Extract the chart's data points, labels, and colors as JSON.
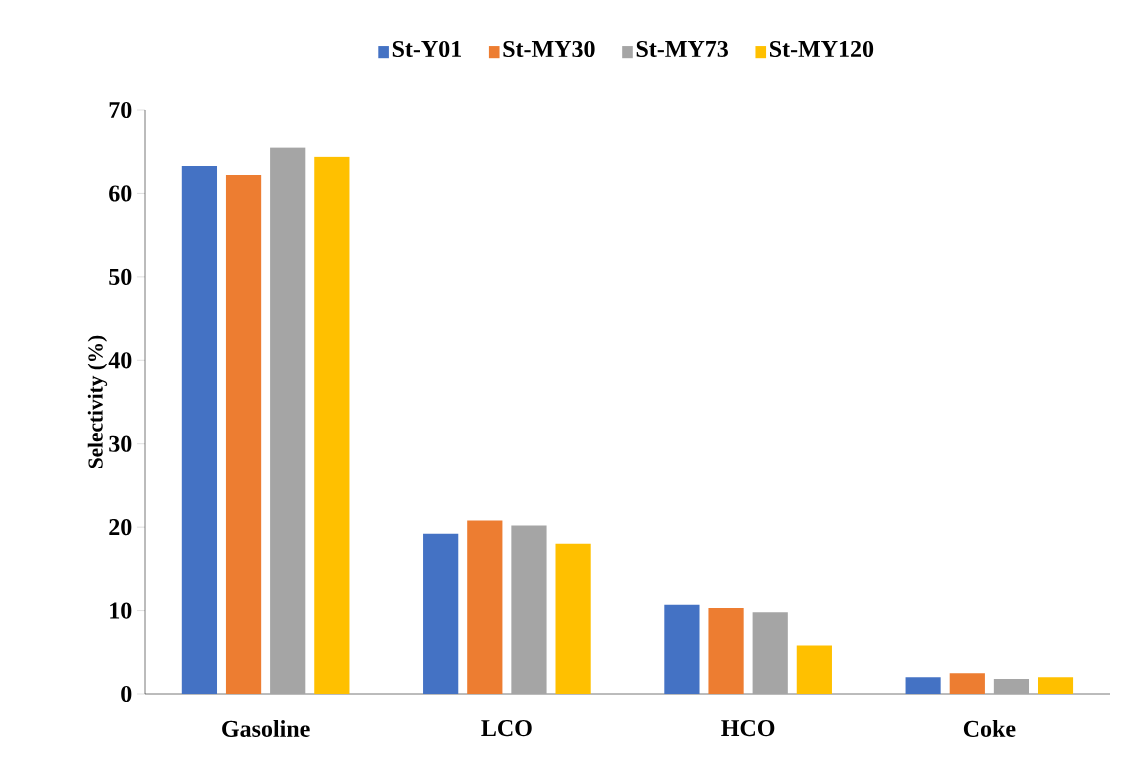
{
  "chart_data": {
    "type": "bar",
    "ylabel": "Selectivity (%)",
    "categories": [
      "Gasoline",
      "LCO",
      "HCO",
      "Coke"
    ],
    "series": [
      {
        "name": "St-Y01",
        "color": "#4472c4",
        "values": [
          63.3,
          19.2,
          10.7,
          2.0
        ]
      },
      {
        "name": "St-MY30",
        "color": "#ed7d31",
        "values": [
          62.2,
          20.8,
          10.3,
          2.5
        ]
      },
      {
        "name": "St-MY73",
        "color": "#a5a5a5",
        "values": [
          65.5,
          20.2,
          9.8,
          1.8
        ]
      },
      {
        "name": "St-MY120",
        "color": "#ffc000",
        "values": [
          64.4,
          18.0,
          5.8,
          2.0
        ]
      }
    ],
    "ylim": [
      0,
      70
    ],
    "yticks": [
      0,
      10,
      20,
      30,
      40,
      50,
      60,
      70
    ],
    "grid": false,
    "legend": "top"
  }
}
